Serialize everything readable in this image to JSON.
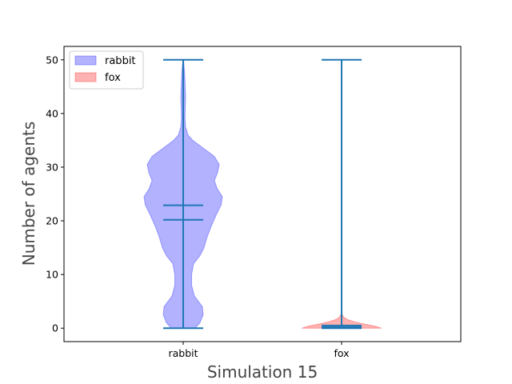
{
  "chart_data": {
    "type": "violin",
    "xlabel": "Simulation 15",
    "ylabel": "Number of agents",
    "ylim": [
      -2.5,
      52.5
    ],
    "yticks": [
      0,
      10,
      20,
      30,
      40,
      50
    ],
    "categories": [
      "rabbit",
      "fox"
    ],
    "legend": {
      "placement": "top-left",
      "entries": [
        "rabbit",
        "fox"
      ]
    },
    "series": [
      {
        "name": "rabbit",
        "color": "#0000ff",
        "min": 0,
        "max": 50,
        "mean": 22.9,
        "median": 20.2,
        "density_profile": [
          [
            0,
            0.3
          ],
          [
            1,
            0.42
          ],
          [
            2.5,
            0.5
          ],
          [
            4,
            0.48
          ],
          [
            6,
            0.28
          ],
          [
            8,
            0.21
          ],
          [
            10,
            0.21
          ],
          [
            12,
            0.26
          ],
          [
            13.5,
            0.42
          ],
          [
            15,
            0.52
          ],
          [
            17,
            0.6
          ],
          [
            19,
            0.7
          ],
          [
            21,
            0.82
          ],
          [
            23,
            0.95
          ],
          [
            24.5,
            0.98
          ],
          [
            26,
            0.85
          ],
          [
            27.5,
            0.78
          ],
          [
            29,
            0.86
          ],
          [
            30.5,
            0.9
          ],
          [
            32,
            0.78
          ],
          [
            33,
            0.6
          ],
          [
            34,
            0.42
          ],
          [
            35,
            0.24
          ],
          [
            36,
            0.12
          ],
          [
            37.5,
            0.06
          ],
          [
            39,
            0.045
          ],
          [
            41,
            0.05
          ],
          [
            43,
            0.06
          ],
          [
            45,
            0.05
          ],
          [
            47,
            0.04
          ],
          [
            49,
            0.02
          ],
          [
            50,
            0.005
          ]
        ]
      },
      {
        "name": "fox",
        "color": "#ff0000",
        "min": 0,
        "max": 50,
        "mean": 0.5,
        "median": 0.2,
        "density_profile": [
          [
            0,
            1.0
          ],
          [
            0.4,
            0.82
          ],
          [
            0.8,
            0.55
          ],
          [
            1.2,
            0.32
          ],
          [
            1.6,
            0.15
          ],
          [
            2,
            0.06
          ],
          [
            2.5,
            0.02
          ],
          [
            3,
            0.0
          ]
        ]
      }
    ]
  }
}
